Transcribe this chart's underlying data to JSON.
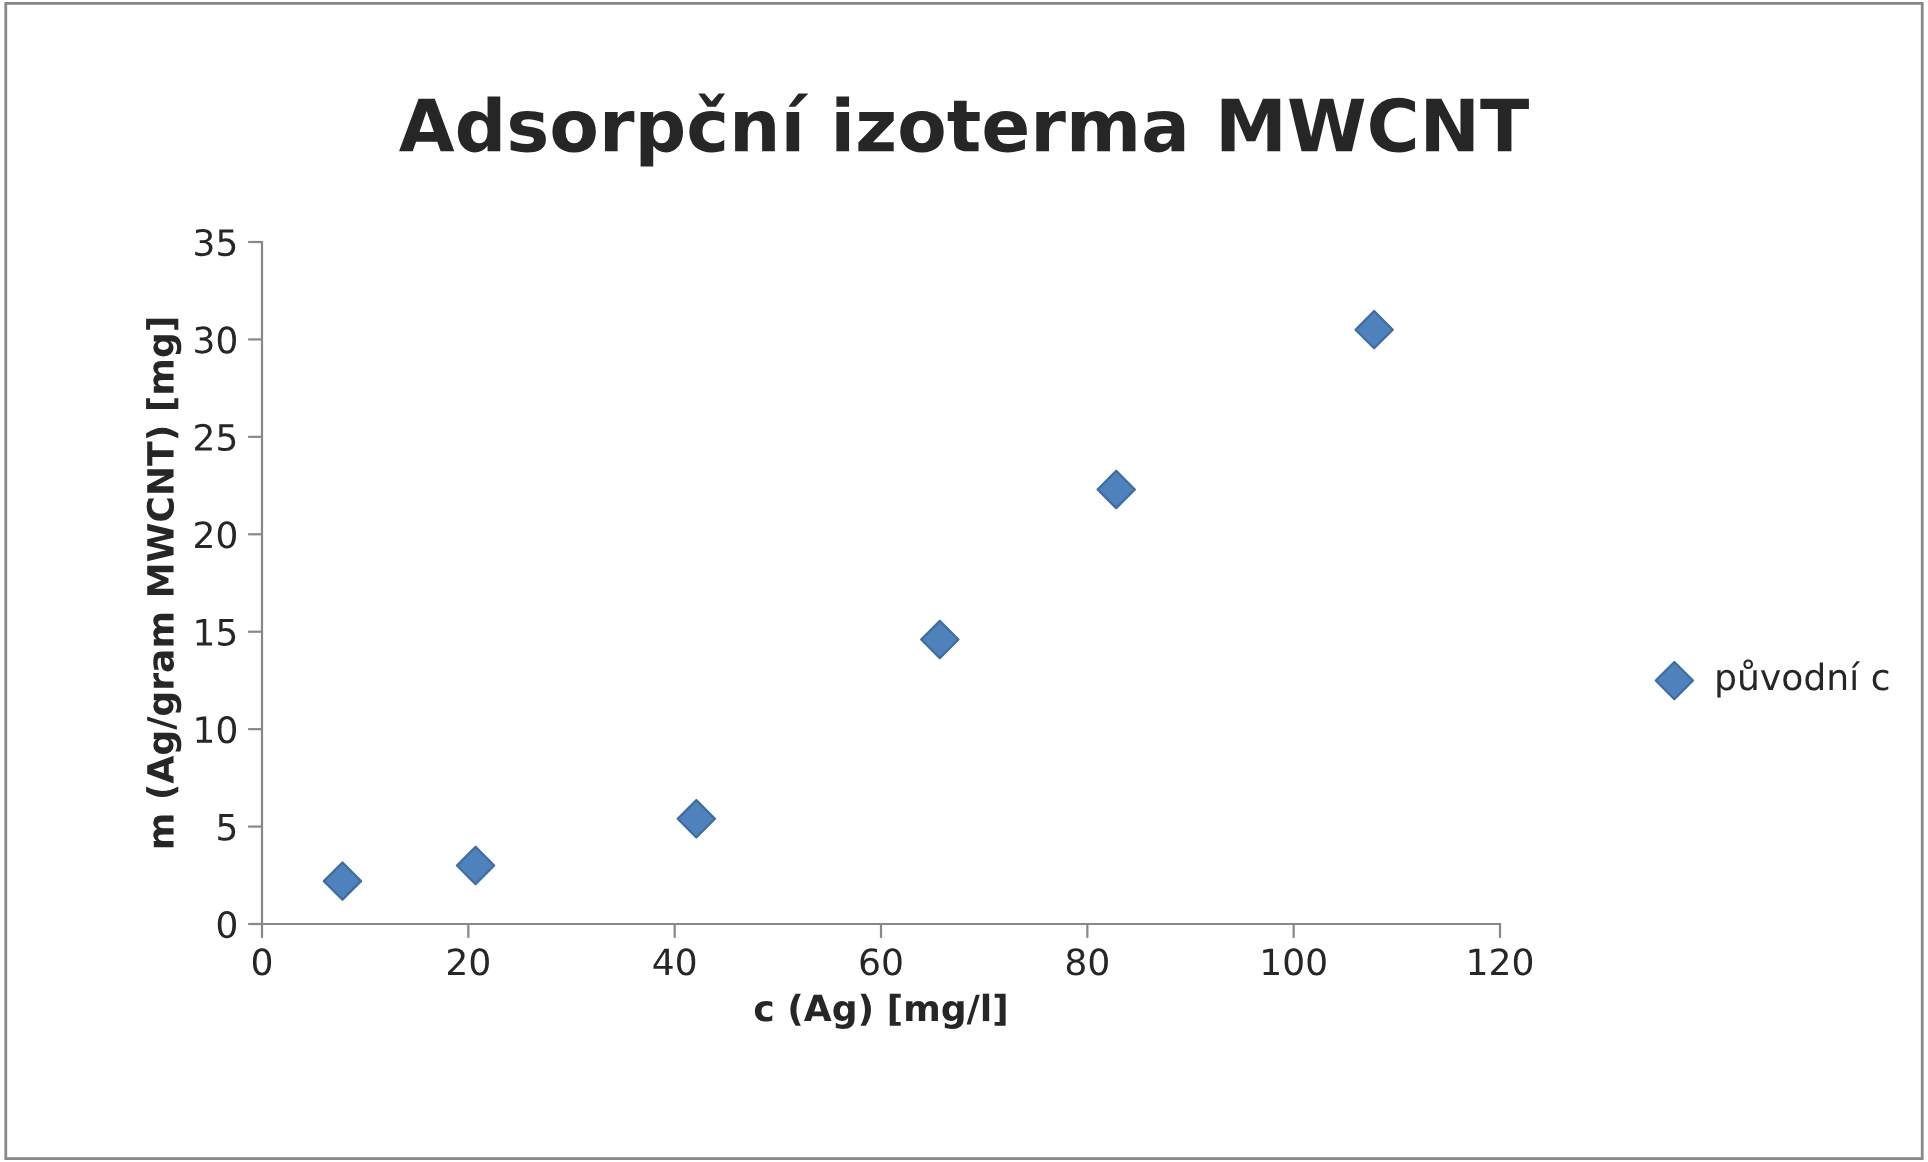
{
  "chart_data": {
    "type": "scatter",
    "title": "Adsorpční izoterma MWCNT",
    "xlabel": "c (Ag) [mg/l]",
    "ylabel": "m (Ag/gram MWCNT) [mg]",
    "series": [
      {
        "name": "původní c",
        "color": "#4f81bd",
        "x": [
          7.8,
          20.7,
          42.1,
          65.7,
          82.8,
          107.8
        ],
        "values": [
          2.2,
          3.0,
          5.4,
          14.6,
          22.3,
          30.5
        ]
      }
    ],
    "xlim": [
      0,
      120
    ],
    "xticks": [
      0,
      20,
      40,
      60,
      80,
      100,
      120
    ],
    "ylim": [
      0,
      35
    ],
    "yticks": [
      0,
      5,
      10,
      15,
      20,
      25,
      30,
      35
    ],
    "grid": false,
    "legend": "right",
    "marker": "diamond"
  }
}
